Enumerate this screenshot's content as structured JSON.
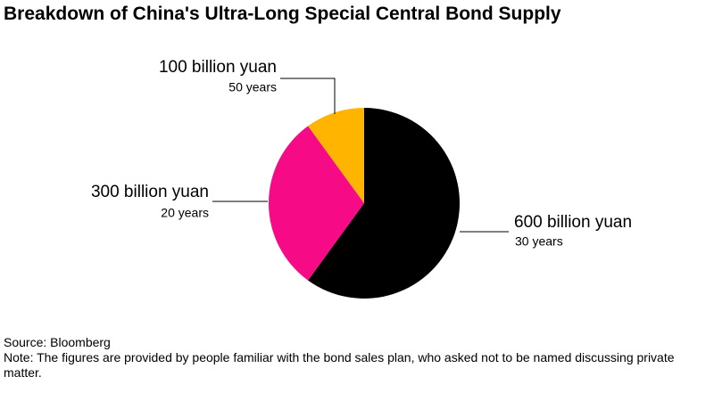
{
  "chart_data": {
    "type": "pie",
    "title": "Breakdown of China's Ultra-Long Special Central Bond Supply",
    "categories": [
      "30 years",
      "20 years",
      "50 years"
    ],
    "values": [
      600,
      300,
      100
    ],
    "value_labels": [
      "600 billion yuan",
      "300 billion yuan",
      "100 billion yuan"
    ],
    "colors": [
      "#000000",
      "#f70a85",
      "#ffb400"
    ],
    "source": "Source: Bloomberg",
    "note": "Note: The figures are provided by people familiar with the bond sales plan, who asked not to be named discussing private matter."
  }
}
